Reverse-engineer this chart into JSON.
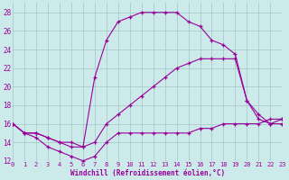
{
  "bg_color": "#cceaea",
  "grid_color": "#aacccc",
  "line_color": "#990099",
  "xlabel": "Windchill (Refroidissement éolien,°C)",
  "ylim": [
    12,
    29
  ],
  "xlim": [
    0,
    23
  ],
  "yticks": [
    12,
    14,
    16,
    18,
    20,
    22,
    24,
    26,
    28
  ],
  "xticks": [
    0,
    1,
    2,
    3,
    4,
    5,
    6,
    7,
    8,
    9,
    10,
    11,
    12,
    13,
    14,
    15,
    16,
    17,
    18,
    19,
    20,
    21,
    22,
    23
  ],
  "series1_x": [
    0,
    1,
    2,
    3,
    4,
    5,
    6,
    7,
    8,
    9,
    10,
    11,
    12,
    13,
    14,
    15,
    16,
    17,
    18,
    19,
    20,
    21,
    22,
    23
  ],
  "series1_y": [
    16,
    15,
    14.5,
    13.5,
    13,
    12.5,
    12,
    12.5,
    14,
    15,
    15,
    15,
    15,
    15,
    15,
    15,
    15.5,
    15.5,
    16,
    16,
    16,
    16,
    16.5,
    16.5
  ],
  "series2_x": [
    0,
    1,
    2,
    3,
    4,
    5,
    6,
    7,
    8,
    9,
    10,
    11,
    12,
    13,
    14,
    15,
    16,
    17,
    18,
    19,
    20,
    21,
    22,
    23
  ],
  "series2_y": [
    16,
    15,
    15,
    14.5,
    14,
    14,
    13.5,
    21,
    25,
    27,
    27.5,
    28,
    28,
    28,
    28,
    27,
    26.5,
    25,
    24.5,
    23.5,
    18.5,
    16.5,
    16,
    16
  ],
  "series3_x": [
    0,
    1,
    2,
    3,
    4,
    5,
    6,
    7,
    8,
    9,
    10,
    11,
    12,
    13,
    14,
    15,
    16,
    17,
    18,
    19,
    20,
    21,
    22,
    23
  ],
  "series3_y": [
    16,
    15,
    15,
    14.5,
    14,
    13.5,
    13.5,
    14,
    16,
    17,
    18,
    19,
    20,
    21,
    22,
    22.5,
    23,
    23,
    23,
    23,
    18.5,
    17,
    16,
    16.5
  ]
}
